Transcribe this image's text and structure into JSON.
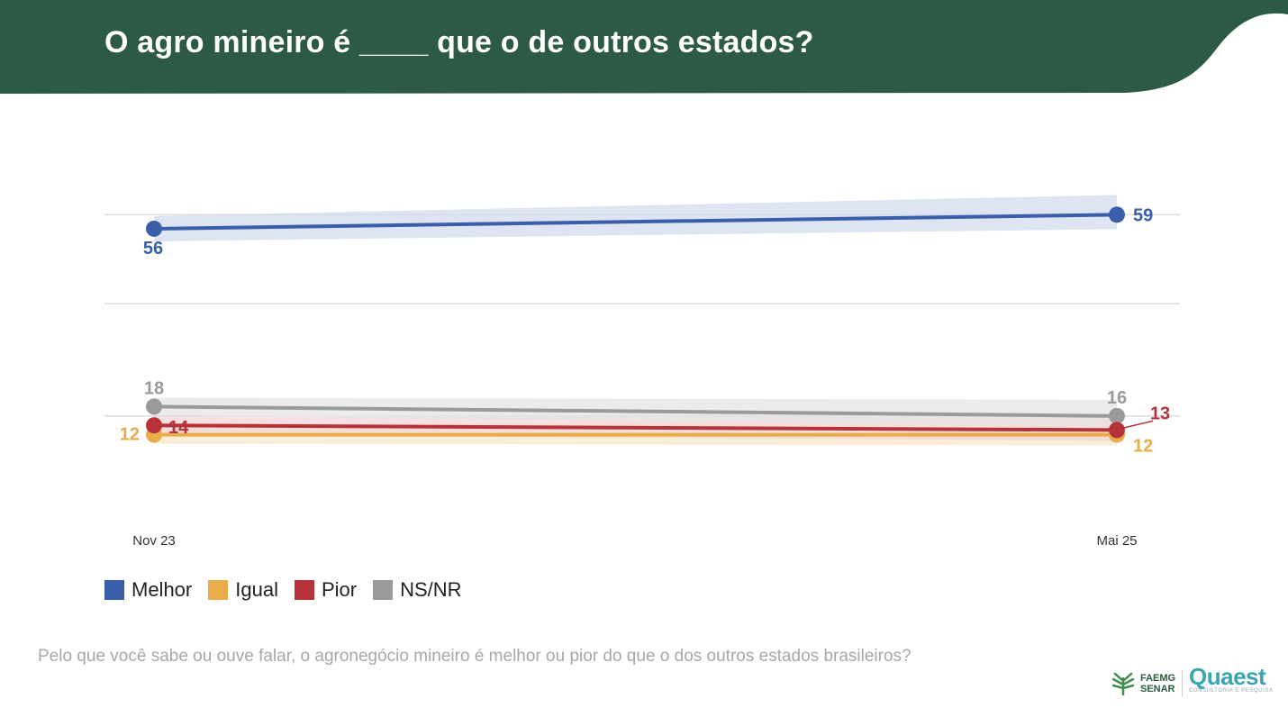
{
  "header": {
    "title": "O agro mineiro é ____ que o de outros estados?",
    "band_color": "#2d5a45"
  },
  "chart_data": {
    "type": "line",
    "x": [
      "Nov 23",
      "Mai 25"
    ],
    "ylim": [
      0,
      65
    ],
    "grid": true,
    "legend_position": "bottom-left",
    "series": [
      {
        "name": "Melhor",
        "values": [
          56,
          59
        ],
        "color": "#3a5ea8"
      },
      {
        "name": "Igual",
        "values": [
          12,
          12
        ],
        "color": "#e8ad4a"
      },
      {
        "name": "Pior",
        "values": [
          14,
          13
        ],
        "color": "#b5323a"
      },
      {
        "name": "NS/NR",
        "values": [
          18,
          16
        ],
        "color": "#9a9a9a"
      }
    ]
  },
  "footer": {
    "question": "Pelo que você sabe ou ouve falar, o agronegócio mineiro é melhor ou pior do que o dos outros estados brasileiros?",
    "logo_faemg_line1": "FAEMG",
    "logo_faemg_line2": "SENAR",
    "logo_quaest": "Quaest",
    "logo_quaest_sub": "CONSULTORIA E PESQUISA"
  }
}
